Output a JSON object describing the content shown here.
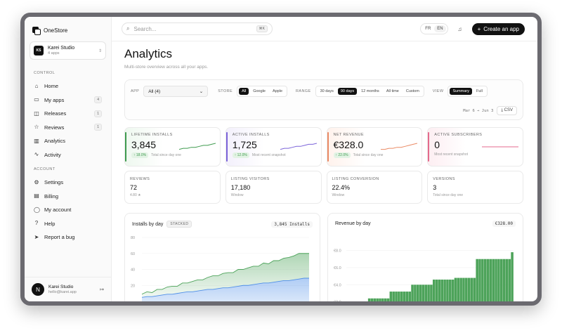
{
  "brand": {
    "name": "OneStore"
  },
  "workspace": {
    "initials": "KS",
    "name": "Karei Studio",
    "sub": "4 apps"
  },
  "sidebar": {
    "control_label": "CONTROL",
    "control_items": [
      {
        "label": "Home",
        "icon": "home-icon",
        "glyph": "⌂",
        "badge": ""
      },
      {
        "label": "My apps",
        "icon": "folder-icon",
        "glyph": "▭",
        "badge": "4"
      },
      {
        "label": "Releases",
        "icon": "box-icon",
        "glyph": "◫",
        "badge": "1"
      },
      {
        "label": "Reviews",
        "icon": "star-icon",
        "glyph": "☆",
        "badge": "1"
      },
      {
        "label": "Analytics",
        "icon": "bar-chart-icon",
        "glyph": "▥",
        "badge": ""
      },
      {
        "label": "Activity",
        "icon": "activity-icon",
        "glyph": "∿",
        "badge": ""
      }
    ],
    "account_label": "ACCOUNT",
    "account_items": [
      {
        "label": "Settings",
        "icon": "gear-icon",
        "glyph": "⚙"
      },
      {
        "label": "Billing",
        "icon": "credit-card-icon",
        "glyph": "▤"
      },
      {
        "label": "My account",
        "icon": "user-icon",
        "glyph": "◯"
      },
      {
        "label": "Help",
        "icon": "help-icon",
        "glyph": "?"
      },
      {
        "label": "Report a bug",
        "icon": "send-icon",
        "glyph": "➤"
      }
    ]
  },
  "user": {
    "initial": "N",
    "name": "Karei Studio",
    "email": "hello@karei.app"
  },
  "topbar": {
    "search_placeholder": "Search...",
    "search_shortcut": "⌘K",
    "lang_fr": "FR",
    "lang_en": "EN",
    "create_label": "Create an app"
  },
  "page": {
    "title": "Analytics",
    "subtitle": "Multi-store overview across all your apps."
  },
  "filters": {
    "app_label": "APP",
    "app_value": "All (4)",
    "store_label": "STORE",
    "store_options": [
      "All",
      "Google",
      "Apple"
    ],
    "store_selected": "All",
    "range_label": "RANGE",
    "range_options": [
      "30 days",
      "90 days",
      "12 months",
      "All time",
      "Custom"
    ],
    "range_selected": "90 days",
    "view_label": "VIEW",
    "view_options": [
      "Summary",
      "Full"
    ],
    "view_selected": "Summary",
    "date_range": "Mar 6 → Jun 3",
    "csv_label": "CSV"
  },
  "kpis": [
    {
      "label": "LIFETIME INSTALLS",
      "value": "3,845",
      "delta": "↑ 18.0%",
      "foot": "Total since day one",
      "color": "#3f9b4f",
      "tint": "#e3f3e5",
      "variant": "green",
      "trend": [
        1,
        2,
        2,
        3,
        3,
        4,
        5,
        5,
        6,
        7
      ]
    },
    {
      "label": "ACTIVE INSTALLS",
      "value": "1,725",
      "delta": "↑ 12.0%",
      "foot": "Most recent snapshot",
      "color": "#7b63d9",
      "tint": "#e3f3e5",
      "variant": "purple",
      "trend": [
        1,
        2,
        2,
        3,
        4,
        4,
        5,
        6,
        6,
        7
      ]
    },
    {
      "label": "NET REVENUE",
      "value": "€328.0",
      "delta": "↑ 22.0%",
      "foot": "Total since day one",
      "color": "#ea8a64",
      "tint": "#e3f3e5",
      "variant": "orange",
      "trend": [
        1,
        1,
        2,
        2,
        3,
        3,
        4,
        5,
        6,
        7
      ]
    },
    {
      "label": "ACTIVE SUBSCRIBERS",
      "value": "0",
      "delta": "",
      "foot": "Most recent snapshot",
      "color": "#e46a8c",
      "tint": "#fde8ee",
      "variant": "pink",
      "trend": [
        0,
        0,
        0,
        0,
        0,
        0,
        0,
        0,
        0,
        0
      ]
    }
  ],
  "stats": [
    {
      "label": "REVIEWS",
      "value": "72",
      "foot": "4.80 ★"
    },
    {
      "label": "LISTING VISITORS",
      "value": "17,180",
      "foot": "Window"
    },
    {
      "label": "LISTING CONVERSION",
      "value": "22.4%",
      "foot": "Window"
    },
    {
      "label": "VERSIONS",
      "value": "3",
      "foot": "Total since day one"
    }
  ],
  "installs_chart": {
    "title": "Installs by day",
    "tag": "STACKED",
    "total": "3,845 Installs"
  },
  "revenue_chart": {
    "title": "Revenue by day",
    "total": "€328.00"
  },
  "chart_data": [
    {
      "type": "area",
      "title": "Installs by day",
      "stacked": true,
      "ylim": [
        0,
        80
      ],
      "yticks": [
        "20",
        "40",
        "60",
        "80"
      ],
      "series": [
        {
          "color": "#4f8fe8",
          "values": [
            5,
            6,
            6,
            7,
            8,
            9,
            9,
            10,
            11,
            12,
            12,
            13,
            14,
            15,
            15,
            16,
            17,
            17,
            18,
            19,
            20,
            20,
            21,
            22,
            23,
            23,
            24,
            25,
            26,
            26,
            27,
            28,
            29,
            29
          ]
        },
        {
          "color": "#4da35a",
          "values": [
            4,
            6,
            5,
            8,
            7,
            9,
            10,
            9,
            12,
            11,
            13,
            14,
            13,
            15,
            17,
            16,
            18,
            19,
            18,
            21,
            20,
            22,
            23,
            22,
            25,
            24,
            27,
            26,
            28,
            29,
            30,
            32,
            31,
            31
          ]
        }
      ]
    },
    {
      "type": "bar",
      "title": "Revenue by day",
      "stacked": true,
      "ylim": [
        0,
        8
      ],
      "yticks": [
        "€2.0",
        "€4.0",
        "€6.0",
        "€8.0"
      ],
      "series": [
        {
          "color": "#4da35a",
          "values": [
            0.3,
            0.3,
            0.3,
            0.3,
            0.3,
            0.3,
            0.3,
            0.3,
            1.8,
            1.8,
            1.8,
            1.8,
            1.8,
            1.8,
            1.8,
            1.8,
            2.6,
            2.6,
            2.6,
            2.6,
            2.6,
            2.6,
            2.6,
            2.6,
            3.4,
            3.4,
            3.4,
            3.4,
            3.4,
            3.4,
            3.4,
            3.4,
            4.0,
            4.0,
            4.0,
            4.0,
            4.0,
            4.0,
            4.0,
            4.0,
            4.2,
            4.2,
            4.2,
            4.2,
            4.2,
            4.2,
            4.2,
            4.2,
            5.0,
            5.0,
            5.0,
            5.0,
            5.0,
            5.0,
            5.0,
            5.0,
            5.0,
            5.0,
            5.0,
            5.0,
            5.0,
            5.8
          ]
        },
        {
          "color": "#4f8fe8",
          "values": [
            0.6,
            0.6,
            0.6,
            0.6,
            0.6,
            0.6,
            0.6,
            0.6,
            0.6,
            0.6,
            0.6,
            0.6,
            0.6,
            0.6,
            0.6,
            0.6,
            0.6,
            0.6,
            0.6,
            0.6,
            0.6,
            0.6,
            0.6,
            0.6,
            0.6,
            0.6,
            0.6,
            0.6,
            0.6,
            0.6,
            0.6,
            0.6,
            0.6,
            0.6,
            0.6,
            0.6,
            0.6,
            0.6,
            0.6,
            0.6,
            0.6,
            0.6,
            0.6,
            0.6,
            0.6,
            0.6,
            0.6,
            0.6,
            2.0,
            2.0,
            2.0,
            2.0,
            2.0,
            2.0,
            2.0,
            2.0,
            2.0,
            2.0,
            2.0,
            2.0,
            2.0,
            2.0
          ]
        }
      ]
    }
  ]
}
